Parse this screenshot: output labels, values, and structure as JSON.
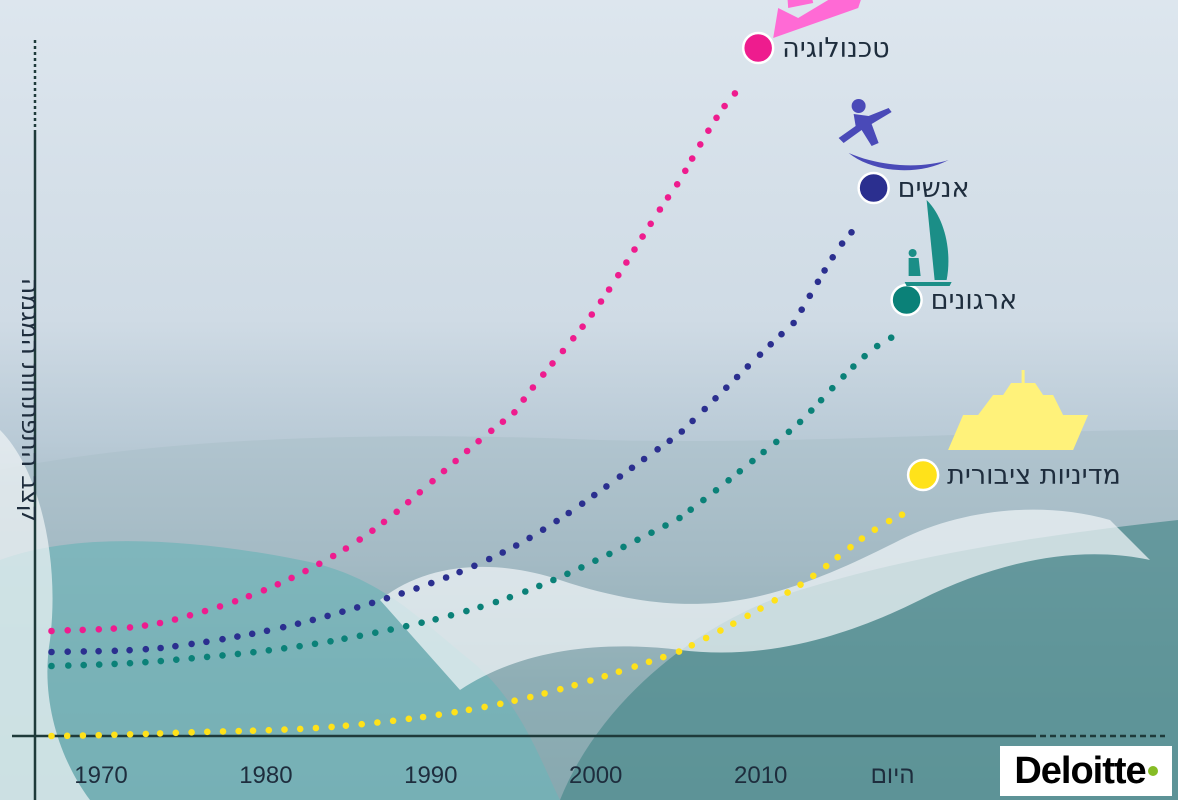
{
  "chart_data": {
    "type": "line",
    "title": "",
    "ylabel": "קצב התפתחות המגמה",
    "x_ticks": [
      "1970",
      "1980",
      "1990",
      "2000",
      "2010",
      "היום"
    ],
    "x_tick_values": [
      1970,
      1980,
      1990,
      2000,
      2010,
      2018
    ],
    "xlim": [
      1966,
      2033
    ],
    "ylim": [
      0,
      100
    ],
    "grid": false,
    "legend": "labels at series ends",
    "series": [
      {
        "name": "טכנולוגיה",
        "color": "#ee1c8e",
        "icon": "jet-ski-icon",
        "x": [
          1967,
          1975,
          1985,
          1995,
          2000,
          2005,
          2009
        ],
        "y": [
          15,
          17,
          27,
          46,
          61,
          79,
          93
        ]
      },
      {
        "name": "אנשים",
        "color": "#2b2f8f",
        "icon": "surfer-icon",
        "x": [
          1967,
          1975,
          1985,
          1995,
          2005,
          2012,
          2016
        ],
        "y": [
          12,
          13,
          18,
          27,
          43,
          59,
          73
        ]
      },
      {
        "name": "ארגונים",
        "color": "#0b8178",
        "icon": "windsurfer-icon",
        "x": [
          1967,
          1975,
          1985,
          1995,
          2005,
          2012,
          2018
        ],
        "y": [
          10,
          11,
          14,
          20,
          31,
          44,
          57
        ]
      },
      {
        "name": "מדיניות ציבורית",
        "color": "#ffe21a",
        "icon": "yacht-icon",
        "x": [
          1967,
          1975,
          1985,
          1995,
          2005,
          2012,
          2019
        ],
        "y": [
          0,
          0.5,
          1.5,
          5,
          12,
          21,
          32
        ]
      }
    ]
  },
  "brand": {
    "logo_text": "Deloitte",
    "logo_dot_color": "#86bc25"
  }
}
